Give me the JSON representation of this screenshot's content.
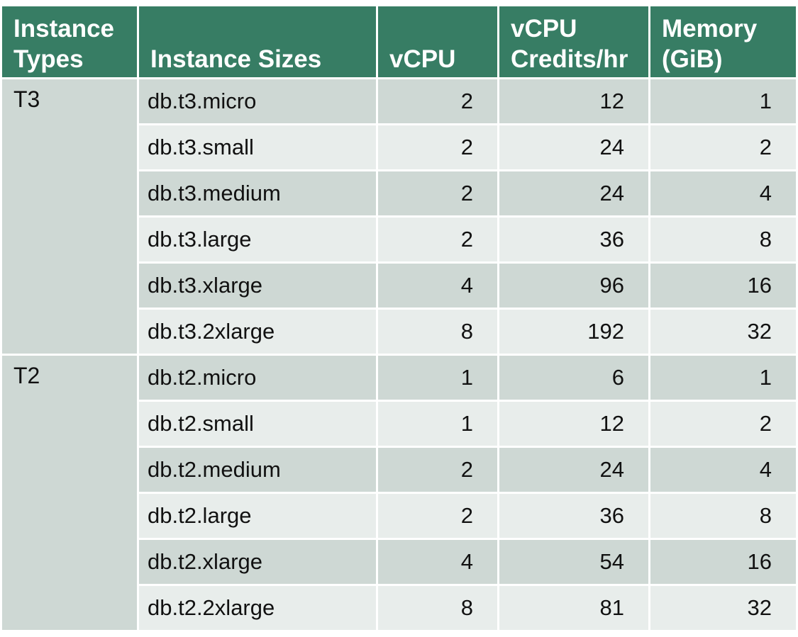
{
  "columns": [
    "Instance Types",
    "Instance Sizes",
    "vCPU",
    "vCPU Credits/hr",
    "Memory (GiB)"
  ],
  "groups": [
    {
      "type": "T3",
      "rows": [
        {
          "size": "db.t3.micro",
          "vcpu": "2",
          "credits": "12",
          "memory": "1"
        },
        {
          "size": "db.t3.small",
          "vcpu": "2",
          "credits": "24",
          "memory": "2"
        },
        {
          "size": "db.t3.medium",
          "vcpu": "2",
          "credits": "24",
          "memory": "4"
        },
        {
          "size": "db.t3.large",
          "vcpu": "2",
          "credits": "36",
          "memory": "8"
        },
        {
          "size": "db.t3.xlarge",
          "vcpu": "4",
          "credits": "96",
          "memory": "16"
        },
        {
          "size": "db.t3.2xlarge",
          "vcpu": "8",
          "credits": "192",
          "memory": "32"
        }
      ]
    },
    {
      "type": "T2",
      "rows": [
        {
          "size": "db.t2.micro",
          "vcpu": "1",
          "credits": "6",
          "memory": "1"
        },
        {
          "size": "db.t2.small",
          "vcpu": "1",
          "credits": "12",
          "memory": "2"
        },
        {
          "size": "db.t2.medium",
          "vcpu": "2",
          "credits": "24",
          "memory": "4"
        },
        {
          "size": "db.t2.large",
          "vcpu": "2",
          "credits": "36",
          "memory": "8"
        },
        {
          "size": "db.t2.xlarge",
          "vcpu": "4",
          "credits": "54",
          "memory": "16"
        },
        {
          "size": "db.t2.2xlarge",
          "vcpu": "8",
          "credits": "81",
          "memory": "32"
        }
      ]
    }
  ],
  "colors": {
    "header_bg": "#377d64",
    "header_text": "#ffffff",
    "row_dark": "#ced8d4",
    "row_light": "#e8edeb"
  }
}
